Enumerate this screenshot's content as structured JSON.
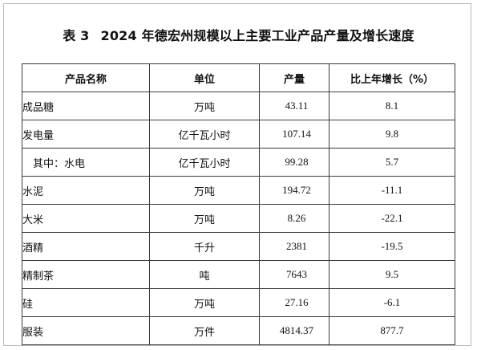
{
  "table": {
    "number": "表 3",
    "title": "2024 年德宏州规模以上主要工业产品产量及增长速度",
    "headers": [
      "产品名称",
      "单位",
      "产量",
      "比上年增长（%）"
    ],
    "rows": [
      {
        "name": "成品糖",
        "unit": "万吨",
        "output": "43.11",
        "growth": "8.1",
        "indent": false
      },
      {
        "name": "发电量",
        "unit": "亿千瓦小时",
        "output": "107.14",
        "growth": "9.8",
        "indent": false
      },
      {
        "name": "其中：水电",
        "unit": "亿千瓦小时",
        "output": "99.28",
        "growth": "5.7",
        "indent": true
      },
      {
        "name": "水泥",
        "unit": "万吨",
        "output": "194.72",
        "growth": "-11.1",
        "indent": false
      },
      {
        "name": "大米",
        "unit": "万吨",
        "output": "8.26",
        "growth": "-22.1",
        "indent": false
      },
      {
        "name": "酒精",
        "unit": "千升",
        "output": "2381",
        "growth": "-19.5",
        "indent": false
      },
      {
        "name": "精制茶",
        "unit": "吨",
        "output": "7643",
        "growth": "9.5",
        "indent": false
      },
      {
        "name": "硅",
        "unit": "万吨",
        "output": "27.16",
        "growth": "-6.1",
        "indent": false
      },
      {
        "name": "服装",
        "unit": "万件",
        "output": "4814.37",
        "growth": "877.7",
        "indent": false
      }
    ]
  }
}
